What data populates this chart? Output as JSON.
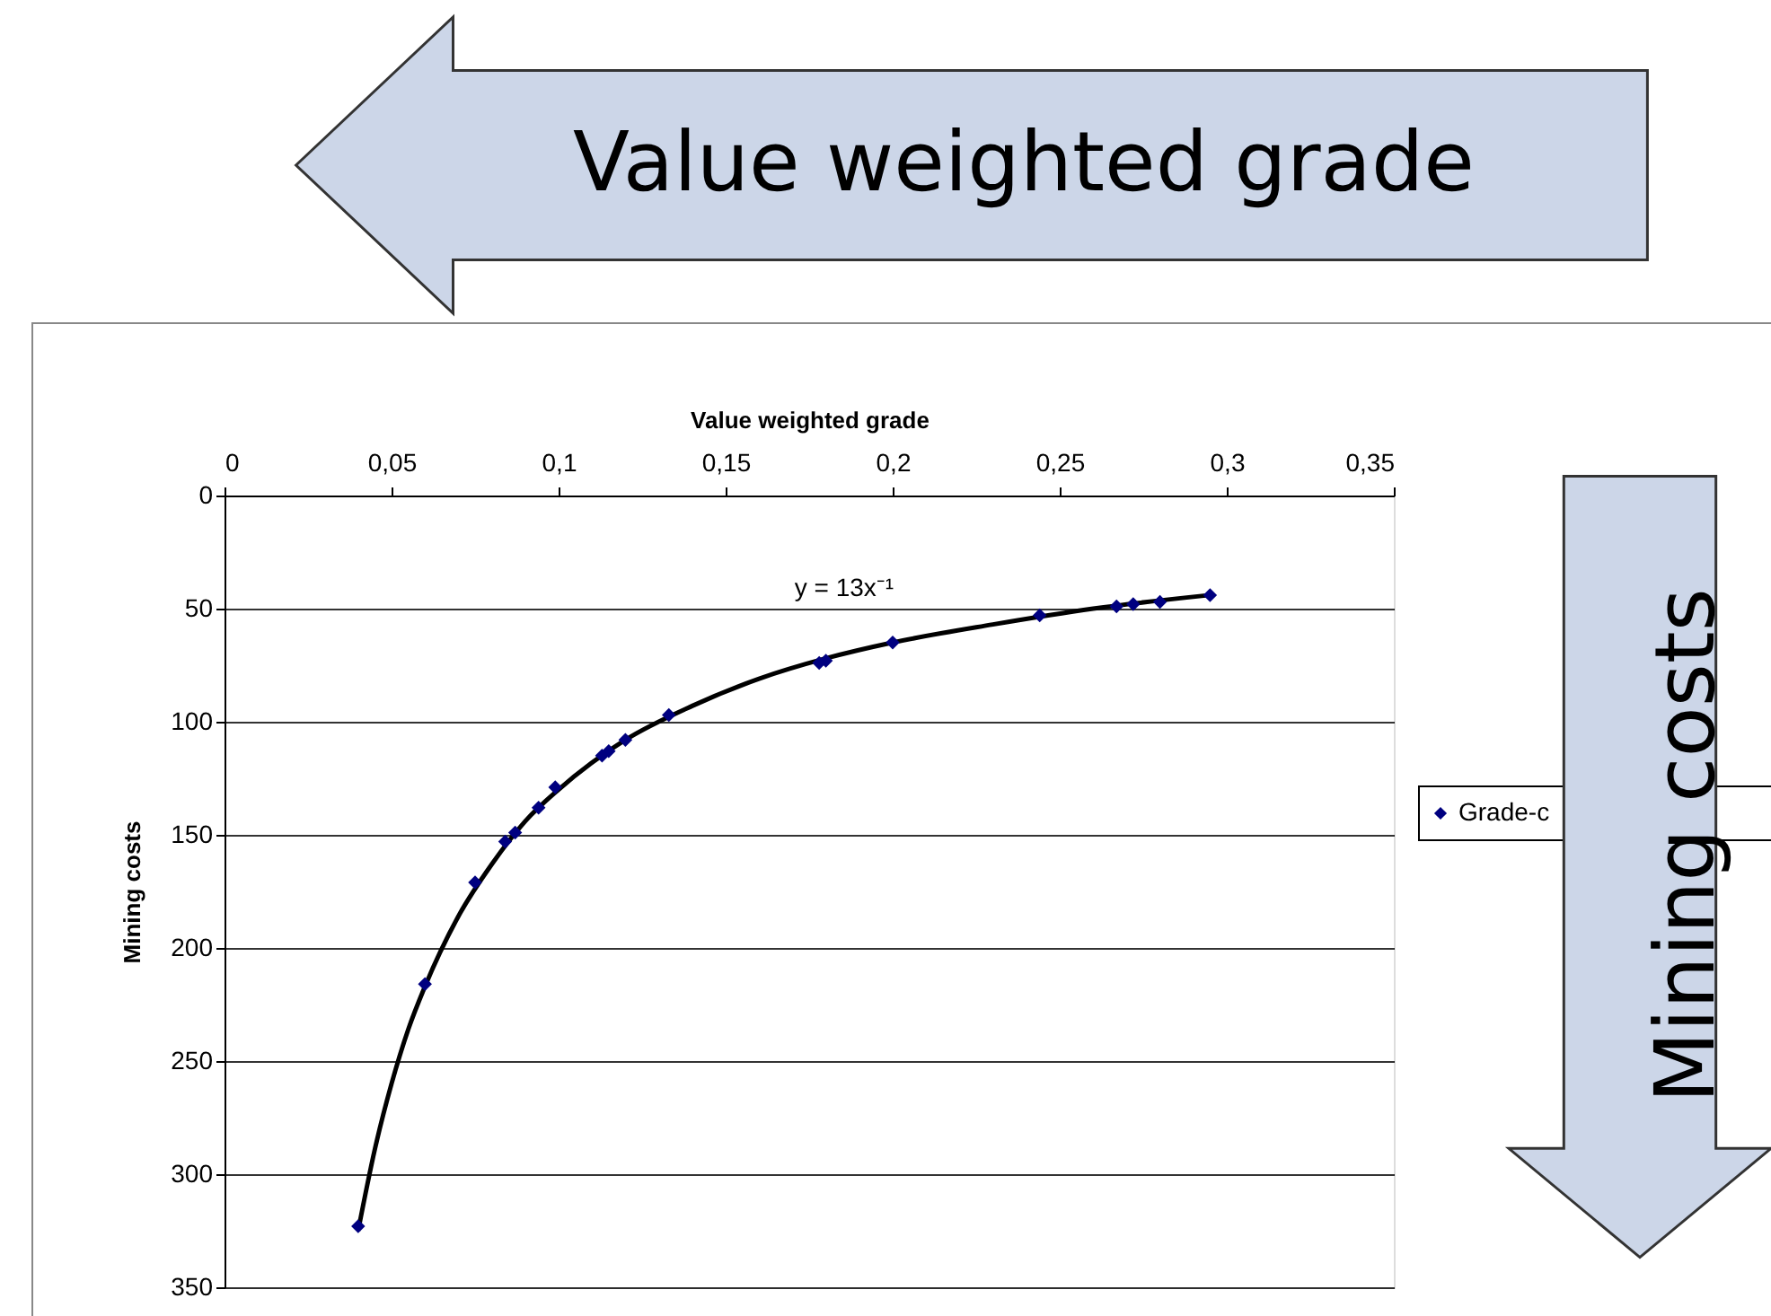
{
  "chart_data": {
    "type": "scatter",
    "xlabel": "Value weighted grade",
    "ylabel": "Mining costs",
    "xlim": [
      0,
      0.35
    ],
    "xticks": [
      0,
      {
        "value": 0.05,
        "label": "0,05"
      },
      {
        "value": 0.1,
        "label": "0,1"
      },
      {
        "value": 0.15,
        "label": "0,15"
      },
      {
        "value": 0.2,
        "label": "0,2"
      },
      {
        "value": 0.25,
        "label": "0,25"
      },
      {
        "value": 0.3,
        "label": "0,3"
      },
      {
        "value": 0.35,
        "label": "0,35"
      }
    ],
    "ylim": [
      350,
      0
    ],
    "yticks": [
      0,
      50,
      100,
      150,
      200,
      250,
      300,
      350
    ],
    "grid": "y",
    "legend": "right",
    "marker": "diamond",
    "series": [
      {
        "name": "Grade-c",
        "color": "#000080",
        "x": [
          0.04,
          0.06,
          0.075,
          0.084,
          0.087,
          0.094,
          0.099,
          0.113,
          0.115,
          0.12,
          0.133,
          0.178,
          0.18,
          0.2,
          0.244,
          0.267,
          0.272,
          0.28,
          0.295
        ],
        "values": [
          323,
          216,
          171,
          153,
          149,
          138,
          129,
          115,
          113,
          108,
          97,
          74,
          73,
          65,
          53,
          49,
          48,
          47,
          44
        ]
      },
      {
        "type": "line",
        "color": "#000000",
        "marker": "none",
        "x": [
          0.04,
          0.045,
          0.05,
          0.055,
          0.06,
          0.07,
          0.08,
          0.09,
          0.1,
          0.12,
          0.14,
          0.16,
          0.18,
          0.2,
          0.23,
          0.26,
          0.295
        ],
        "values": [
          325,
          289,
          260,
          236,
          217,
          186,
          163,
          144,
          130,
          108,
          93,
          81,
          72,
          65,
          57,
          50,
          44
        ]
      }
    ],
    "annotations": [
      "y = 13x⁻¹",
      "Value weighted grade",
      "Mining costs"
    ]
  }
}
